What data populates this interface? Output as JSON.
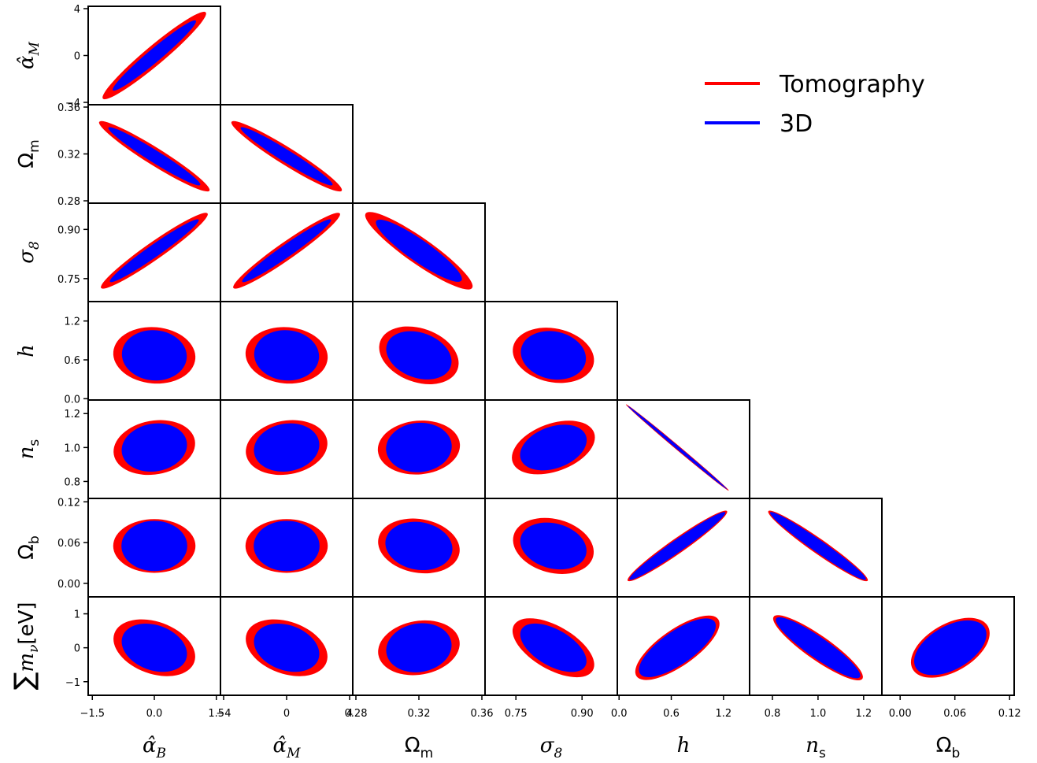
{
  "chart_data": {
    "type": "corner-ellipse",
    "params": [
      {
        "key": "alphaB",
        "label": "α̂_B",
        "range": [
          -1.6,
          1.6
        ],
        "ticks": [
          -1.5,
          0.0,
          1.5
        ],
        "tick_labels": [
          "−1.5",
          "0.0",
          "1.5"
        ]
      },
      {
        "key": "alphaM",
        "label": "α̂_M",
        "range": [
          -4.2,
          4.2
        ],
        "ticks": [
          -4,
          0,
          4
        ],
        "tick_labels": [
          "−4",
          "0",
          "4"
        ]
      },
      {
        "key": "Om",
        "label": "Ω_m",
        "range": [
          0.278,
          0.362
        ],
        "ticks": [
          0.28,
          0.32,
          0.36
        ],
        "tick_labels": [
          "0.28",
          "0.32",
          "0.36"
        ]
      },
      {
        "key": "s8",
        "label": "σ_8",
        "range": [
          0.68,
          0.98
        ],
        "ticks": [
          0.75,
          0.9
        ],
        "tick_labels": [
          "0.75",
          "0.90"
        ]
      },
      {
        "key": "h",
        "label": "h",
        "range": [
          -0.02,
          1.5
        ],
        "ticks": [
          0.0,
          0.6,
          1.2
        ],
        "tick_labels": [
          "0.0",
          "0.6",
          "1.2"
        ]
      },
      {
        "key": "ns",
        "label": "n_s",
        "range": [
          0.7,
          1.28
        ],
        "ticks": [
          0.8,
          1.0,
          1.2
        ],
        "tick_labels": [
          "0.8",
          "1.0",
          "1.2"
        ]
      },
      {
        "key": "Ob",
        "label": "Ω_b",
        "range": [
          -0.02,
          0.125
        ],
        "ticks": [
          0.0,
          0.06,
          0.12
        ],
        "tick_labels": [
          "0.00",
          "0.06",
          "0.12"
        ]
      },
      {
        "key": "mnu",
        "label": "∑m_ν[eV]",
        "range": [
          -1.4,
          1.5
        ],
        "ticks": [
          -1,
          0,
          1
        ],
        "tick_labels": [
          "−1",
          "0",
          "1"
        ]
      }
    ],
    "row_params": [
      "alphaM",
      "Om",
      "s8",
      "h",
      "ns",
      "Ob",
      "mnu"
    ],
    "col_params": [
      "alphaB",
      "alphaM",
      "Om",
      "s8",
      "h",
      "ns",
      "Ob"
    ],
    "series": [
      {
        "name": "Tomography",
        "color": "#ff0000"
      },
      {
        "name": "3D",
        "color": "#0000ff"
      }
    ],
    "ellipses": [
      {
        "row": 0,
        "col": 0,
        "center": [
          0.0,
          0.0
        ],
        "tomography": {
          "a": 1.55,
          "b": 0.22,
          "angle": 40
        },
        "3d": {
          "a": 1.25,
          "b": 0.15,
          "angle": 40
        }
      },
      {
        "row": 1,
        "col": 0,
        "center": [
          0.0,
          0.318
        ],
        "tomography": {
          "a": 1.5,
          "b": 0.2,
          "angle": -32
        },
        "3d": {
          "a": 1.25,
          "b": 0.14,
          "angle": -32
        }
      },
      {
        "row": 1,
        "col": 1,
        "center": [
          0.0,
          0.318
        ],
        "tomography": {
          "a": 1.5,
          "b": 0.2,
          "angle": -32
        },
        "3d": {
          "a": 1.25,
          "b": 0.14,
          "angle": -32
        }
      },
      {
        "row": 2,
        "col": 0,
        "center": [
          0.0,
          0.835
        ],
        "tomography": {
          "a": 1.5,
          "b": 0.2,
          "angle": 35
        },
        "3d": {
          "a": 1.25,
          "b": 0.14,
          "angle": 35
        }
      },
      {
        "row": 2,
        "col": 1,
        "center": [
          0.0,
          0.835
        ],
        "tomography": {
          "a": 1.5,
          "b": 0.2,
          "angle": 35
        },
        "3d": {
          "a": 1.25,
          "b": 0.14,
          "angle": 35
        }
      },
      {
        "row": 2,
        "col": 2,
        "center": [
          0.32,
          0.835
        ],
        "tomography": {
          "a": 1.5,
          "b": 0.3,
          "angle": -35
        },
        "3d": {
          "a": 1.2,
          "b": 0.25,
          "angle": -35
        }
      },
      {
        "row": 3,
        "col": 0,
        "center": [
          0.0,
          0.67
        ],
        "tomography": {
          "a": 0.95,
          "b": 0.65,
          "angle": -5
        },
        "3d": {
          "a": 0.75,
          "b": 0.58,
          "angle": -5
        }
      },
      {
        "row": 3,
        "col": 1,
        "center": [
          0.0,
          0.67
        ],
        "tomography": {
          "a": 0.95,
          "b": 0.65,
          "angle": -5
        },
        "3d": {
          "a": 0.75,
          "b": 0.58,
          "angle": -5
        }
      },
      {
        "row": 3,
        "col": 2,
        "center": [
          0.32,
          0.67
        ],
        "tomography": {
          "a": 0.95,
          "b": 0.62,
          "angle": -20
        },
        "3d": {
          "a": 0.78,
          "b": 0.52,
          "angle": -20
        }
      },
      {
        "row": 3,
        "col": 3,
        "center": [
          0.835,
          0.67
        ],
        "tomography": {
          "a": 0.95,
          "b": 0.62,
          "angle": -12
        },
        "3d": {
          "a": 0.76,
          "b": 0.55,
          "angle": -12
        }
      },
      {
        "row": 4,
        "col": 0,
        "center": [
          0.0,
          1.0
        ],
        "tomography": {
          "a": 0.95,
          "b": 0.62,
          "angle": 10
        },
        "3d": {
          "a": 0.76,
          "b": 0.55,
          "angle": 10
        }
      },
      {
        "row": 4,
        "col": 1,
        "center": [
          0.0,
          1.0
        ],
        "tomography": {
          "a": 0.95,
          "b": 0.62,
          "angle": 10
        },
        "3d": {
          "a": 0.76,
          "b": 0.55,
          "angle": 10
        }
      },
      {
        "row": 4,
        "col": 2,
        "center": [
          0.32,
          1.0
        ],
        "tomography": {
          "a": 0.95,
          "b": 0.62,
          "angle": 5
        },
        "3d": {
          "a": 0.76,
          "b": 0.57,
          "angle": 5
        }
      },
      {
        "row": 4,
        "col": 3,
        "center": [
          0.835,
          1.0
        ],
        "tomography": {
          "a": 1.0,
          "b": 0.55,
          "angle": 20
        },
        "3d": {
          "a": 0.8,
          "b": 0.48,
          "angle": 20
        }
      },
      {
        "row": 4,
        "col": 4,
        "center": [
          0.67,
          1.0
        ],
        "tomography": {
          "a": 1.55,
          "b": 0.05,
          "angle": -40
        },
        "3d": {
          "a": 1.5,
          "b": 0.035,
          "angle": -40
        }
      },
      {
        "row": 5,
        "col": 0,
        "center": [
          0.0,
          0.055
        ],
        "tomography": {
          "a": 0.95,
          "b": 0.62,
          "angle": 0
        },
        "3d": {
          "a": 0.76,
          "b": 0.58,
          "angle": 0
        }
      },
      {
        "row": 5,
        "col": 1,
        "center": [
          0.0,
          0.055
        ],
        "tomography": {
          "a": 0.95,
          "b": 0.62,
          "angle": 0
        },
        "3d": {
          "a": 0.76,
          "b": 0.58,
          "angle": 0
        }
      },
      {
        "row": 5,
        "col": 2,
        "center": [
          0.32,
          0.055
        ],
        "tomography": {
          "a": 0.95,
          "b": 0.62,
          "angle": -10
        },
        "3d": {
          "a": 0.78,
          "b": 0.55,
          "angle": -10
        }
      },
      {
        "row": 5,
        "col": 3,
        "center": [
          0.835,
          0.055
        ],
        "tomography": {
          "a": 0.95,
          "b": 0.62,
          "angle": -15
        },
        "3d": {
          "a": 0.78,
          "b": 0.52,
          "angle": -15
        }
      },
      {
        "row": 5,
        "col": 4,
        "center": [
          0.67,
          0.055
        ],
        "tomography": {
          "a": 1.4,
          "b": 0.17,
          "angle": 35
        },
        "3d": {
          "a": 1.35,
          "b": 0.14,
          "angle": 35
        }
      },
      {
        "row": 5,
        "col": 5,
        "center": [
          1.0,
          0.055
        ],
        "tomography": {
          "a": 1.4,
          "b": 0.17,
          "angle": -35
        },
        "3d": {
          "a": 1.35,
          "b": 0.14,
          "angle": -35
        }
      },
      {
        "row": 6,
        "col": 0,
        "center": [
          0.0,
          0.0
        ],
        "tomography": {
          "a": 0.98,
          "b": 0.6,
          "angle": -20
        },
        "3d": {
          "a": 0.78,
          "b": 0.52,
          "angle": -20
        }
      },
      {
        "row": 6,
        "col": 1,
        "center": [
          0.0,
          0.0
        ],
        "tomography": {
          "a": 0.98,
          "b": 0.6,
          "angle": -20
        },
        "3d": {
          "a": 0.78,
          "b": 0.52,
          "angle": -20
        }
      },
      {
        "row": 6,
        "col": 2,
        "center": [
          0.32,
          0.0
        ],
        "tomography": {
          "a": 0.95,
          "b": 0.62,
          "angle": 10
        },
        "3d": {
          "a": 0.76,
          "b": 0.56,
          "angle": 10
        }
      },
      {
        "row": 6,
        "col": 3,
        "center": [
          0.835,
          0.0
        ],
        "tomography": {
          "a": 1.05,
          "b": 0.5,
          "angle": -30
        },
        "3d": {
          "a": 0.85,
          "b": 0.42,
          "angle": -30
        }
      },
      {
        "row": 6,
        "col": 4,
        "center": [
          0.67,
          0.0
        ],
        "tomography": {
          "a": 1.15,
          "b": 0.42,
          "angle": 35
        },
        "3d": {
          "a": 1.05,
          "b": 0.38,
          "angle": 35
        }
      },
      {
        "row": 6,
        "col": 5,
        "center": [
          1.0,
          0.0
        ],
        "tomography": {
          "a": 1.25,
          "b": 0.28,
          "angle": -35
        },
        "3d": {
          "a": 1.18,
          "b": 0.24,
          "angle": -35
        }
      },
      {
        "row": 6,
        "col": 6,
        "center": [
          0.055,
          0.0
        ],
        "tomography": {
          "a": 1.0,
          "b": 0.55,
          "angle": 30
        },
        "3d": {
          "a": 0.92,
          "b": 0.5,
          "angle": 30
        }
      }
    ],
    "legend": {
      "placement": "top-right",
      "entries": [
        "Tomography",
        "3D"
      ]
    }
  }
}
